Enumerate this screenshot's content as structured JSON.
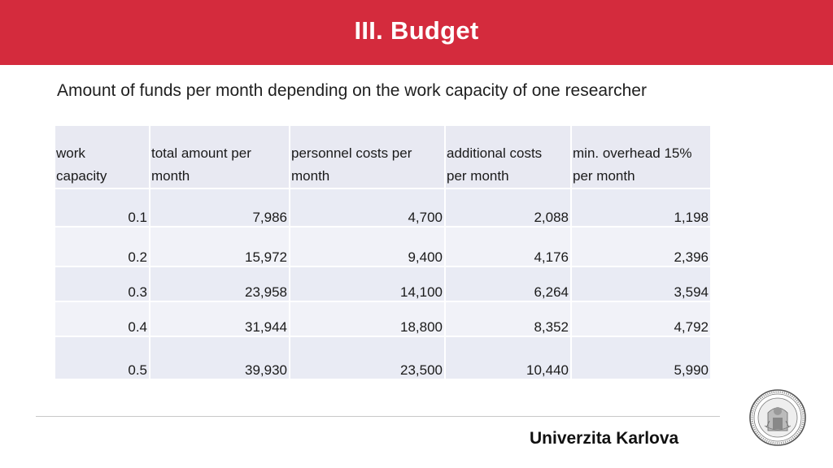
{
  "header": {
    "title": "III. Budget"
  },
  "subtitle": "Amount of funds per month depending on the work capacity of one researcher",
  "table": {
    "headers": [
      [
        "work",
        "capacity"
      ],
      [
        "total amount per",
        "month"
      ],
      [
        "personnel costs per",
        "month"
      ],
      [
        "additional costs",
        "per month"
      ],
      [
        "min. overhead 15%",
        "per month"
      ]
    ],
    "rows": [
      [
        "0.1",
        "7,986",
        "4,700",
        "2,088",
        "1,198"
      ],
      [
        "0.2",
        "15,972",
        "9,400",
        "4,176",
        "2,396"
      ],
      [
        "0.3",
        "23,958",
        "14,100",
        "6,264",
        "3,594"
      ],
      [
        "0.4",
        "31,944",
        "18,800",
        "8,352",
        "4,792"
      ],
      [
        "0.5",
        "39,930",
        "23,500",
        "10,440",
        "5,990"
      ]
    ]
  },
  "footer": {
    "university": "Univerzita Karlova",
    "seal_icon": "university-seal-icon"
  },
  "colors": {
    "title_bar": "#d42b3d",
    "table_header_bg": "#e8e9f2",
    "table_row_bg": "#eef0f7"
  }
}
